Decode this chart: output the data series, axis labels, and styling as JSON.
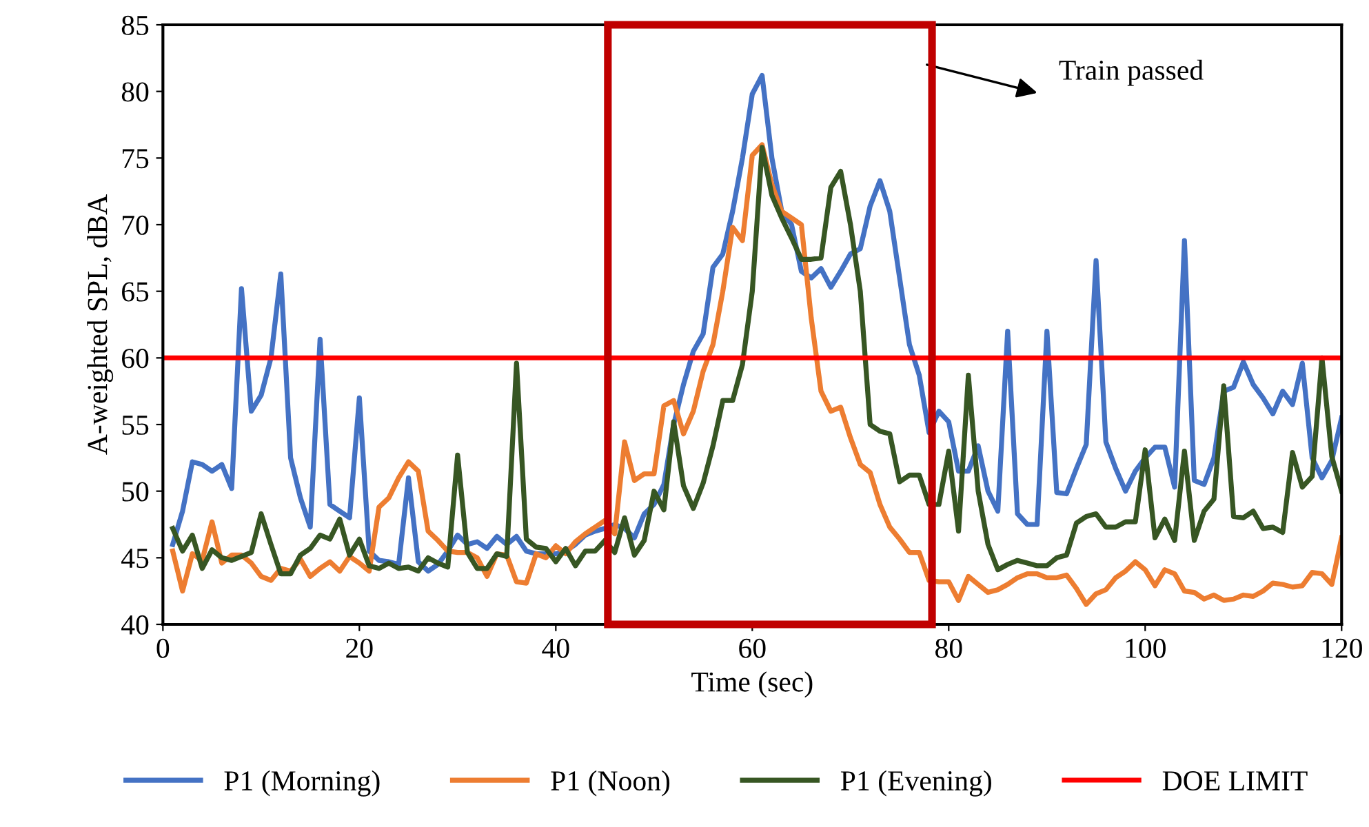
{
  "chart_data": {
    "type": "line",
    "xlabel": "Time (sec)",
    "ylabel": "A-weighted SPL, dBA",
    "x": [
      1,
      2,
      3,
      4,
      5,
      6,
      7,
      8,
      9,
      10,
      11,
      12,
      13,
      14,
      15,
      16,
      17,
      18,
      19,
      20,
      21,
      22,
      23,
      24,
      25,
      26,
      27,
      28,
      29,
      30,
      31,
      32,
      33,
      34,
      35,
      36,
      37,
      38,
      39,
      40,
      41,
      42,
      43,
      44,
      45,
      46,
      47,
      48,
      49,
      50,
      51,
      52,
      53,
      54,
      55,
      56,
      57,
      58,
      59,
      60,
      61,
      62,
      63,
      64,
      65,
      66,
      67,
      68,
      69,
      70,
      71,
      72,
      73,
      74,
      75,
      76,
      77,
      78,
      79,
      80,
      81,
      82,
      83,
      84,
      85,
      86,
      87,
      88,
      89,
      90,
      91,
      92,
      93,
      94,
      95,
      96,
      97,
      98,
      99,
      100,
      101,
      102,
      103,
      104,
      105,
      106,
      107,
      108,
      109,
      110,
      111,
      112,
      113,
      114,
      115,
      116,
      117,
      118,
      119,
      120
    ],
    "series": [
      {
        "name": "P1 (Morning)",
        "color": "#4472c4",
        "values": [
          46,
          48.5,
          52.2,
          52,
          51.5,
          52,
          50.2,
          65.2,
          56,
          57.2,
          60,
          66.3,
          52.5,
          49.5,
          47.3,
          61.4,
          49,
          48.5,
          48,
          57,
          45.5,
          44.8,
          44.7,
          44.5,
          51,
          44.7,
          44,
          44.5,
          45.5,
          46.7,
          46,
          46.2,
          45.7,
          46.6,
          46,
          46.6,
          45.5,
          45.3,
          45.3,
          45.3,
          45.5,
          46,
          46.7,
          47,
          47.2,
          47.5,
          47.2,
          46.5,
          48.3,
          49,
          50.5,
          55,
          58,
          60.5,
          61.8,
          66.8,
          67.8,
          71,
          75,
          79.8,
          81.2,
          75,
          71,
          70,
          66.5,
          66,
          66.7,
          65.3,
          66.5,
          67.8,
          68.2,
          71.4,
          73.3,
          71,
          66,
          61,
          58.7,
          54.4,
          56,
          55.2,
          51.5,
          51.5,
          53.4,
          50,
          48.5,
          62,
          48.3,
          47.5,
          47.5,
          62,
          49.9,
          49.8,
          51.7,
          53.5,
          67.3,
          53.7,
          51.7,
          50,
          51.5,
          52.5,
          53.3,
          53.3,
          50.3,
          68.8,
          50.8,
          50.5,
          52.5,
          57.5,
          57.8,
          59.7,
          58,
          57,
          55.8,
          57.5,
          56.5,
          59.6,
          52.5,
          51,
          52.3,
          55.5
        ]
      },
      {
        "name": "P1 (Noon)",
        "color": "#ed7d31",
        "values": [
          45.5,
          42.5,
          45.3,
          44.8,
          47.7,
          44.6,
          45.2,
          45.2,
          44.6,
          43.6,
          43.3,
          44.2,
          44,
          44.9,
          43.6,
          44.2,
          44.7,
          44,
          45.1,
          44.6,
          44,
          48.8,
          49.5,
          51,
          52.2,
          51.5,
          47,
          46.3,
          45.5,
          45.4,
          45.4,
          45,
          43.6,
          45.3,
          45.2,
          43.2,
          43.1,
          45.3,
          45,
          45.9,
          45.3,
          46.2,
          46.8,
          47.3,
          47.8,
          46.8,
          53.7,
          50.8,
          51.3,
          51.3,
          56.4,
          56.8,
          54.3,
          56,
          59,
          61,
          65,
          69.8,
          68.8,
          75.2,
          76,
          73,
          71,
          70.5,
          70,
          63,
          57.5,
          56,
          56.3,
          54,
          52,
          51.4,
          49,
          47.3,
          46.4,
          45.4,
          45.4,
          43.3,
          43.2,
          43.2,
          41.8,
          43.6,
          43,
          42.4,
          42.6,
          43,
          43.5,
          43.8,
          43.8,
          43.5,
          43.5,
          43.7,
          42.7,
          41.5,
          42.3,
          42.6,
          43.5,
          44,
          44.7,
          44.1,
          42.9,
          44.1,
          43.8,
          42.5,
          42.4,
          41.9,
          42.2,
          41.8,
          41.9,
          42.2,
          42.1,
          42.5,
          43.1,
          43,
          42.8,
          42.9,
          43.9,
          43.8,
          43,
          46.5
        ]
      },
      {
        "name": "P1 (Evening)",
        "color": "#375623",
        "values": [
          47.2,
          45.5,
          46.7,
          44.2,
          45.6,
          45,
          44.8,
          45.1,
          45.4,
          48.3,
          46,
          43.8,
          43.8,
          45.2,
          45.7,
          46.7,
          46.4,
          47.9,
          45.2,
          46.4,
          44.4,
          44.2,
          44.6,
          44.2,
          44.3,
          44,
          45,
          44.6,
          44.3,
          52.7,
          45.4,
          44.2,
          44.2,
          45.3,
          45.1,
          59.6,
          46.4,
          45.8,
          45.7,
          44.7,
          45.7,
          44.4,
          45.5,
          45.5,
          46.3,
          45.4,
          48,
          45.2,
          46.3,
          50,
          48.6,
          55.2,
          50.4,
          48.7,
          50.6,
          53.4,
          56.8,
          56.8,
          59.5,
          65,
          75.8,
          72.2,
          70.5,
          69,
          67.4,
          67.4,
          67.5,
          72.8,
          74,
          70,
          65,
          55,
          54.5,
          54.3,
          50.7,
          51.2,
          51.2,
          49,
          49,
          53,
          47,
          58.7,
          50,
          46,
          44.1,
          44.5,
          44.8,
          44.6,
          44.4,
          44.4,
          45,
          45.2,
          47.6,
          48.1,
          48.3,
          47.3,
          47.3,
          47.7,
          47.7,
          53.1,
          46.5,
          47.9,
          46.3,
          53,
          46.3,
          48.5,
          49.4,
          57.9,
          48.1,
          48,
          48.5,
          47.2,
          47.3,
          46.9,
          52.9,
          50.3,
          51.1,
          60,
          52.6,
          50
        ]
      }
    ],
    "ref_lines": [
      {
        "axis": "y",
        "value": 60,
        "label": "DOE LIMIT",
        "color": "#ff0000"
      }
    ],
    "annotations": [
      "Train passed"
    ],
    "xlim": [
      0,
      120
    ],
    "xticks": [
      0,
      20,
      40,
      60,
      80,
      100,
      120
    ],
    "ylim": [
      40,
      85
    ],
    "yticks": [
      40,
      45,
      50,
      55,
      60,
      65,
      70,
      75,
      80,
      85
    ],
    "grid": false,
    "legend": "bottom",
    "marker": "none",
    "line_style": "solid"
  }
}
